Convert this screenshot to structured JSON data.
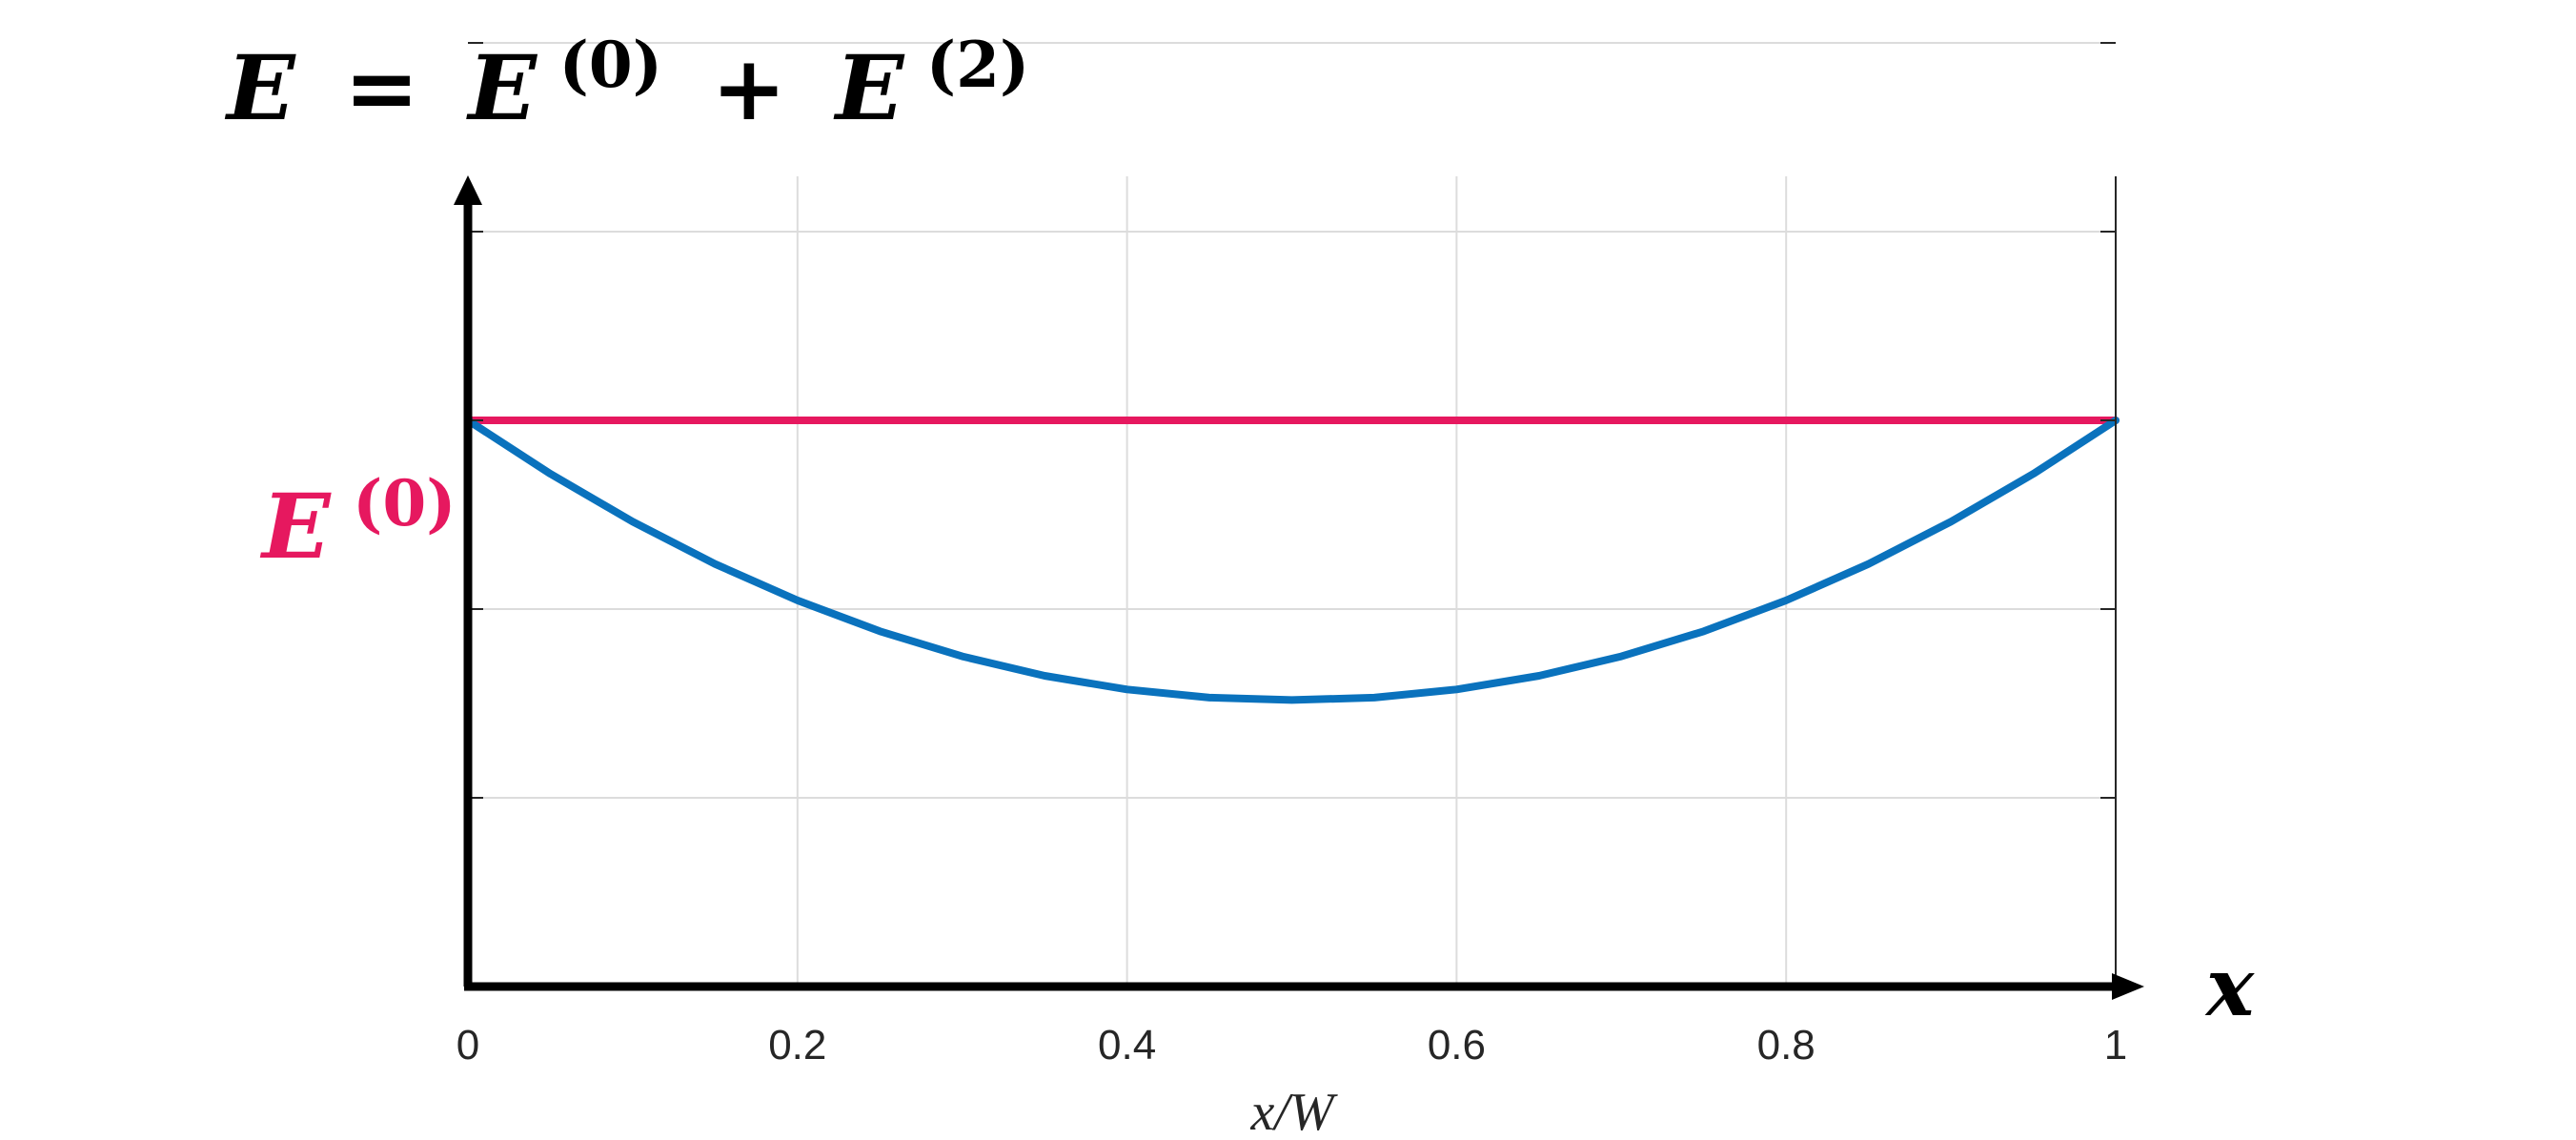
{
  "chart_data": {
    "type": "line",
    "title": {
      "lhs": "E",
      "equals": "=",
      "term1_base": "E",
      "term1_sup": "(0)",
      "plus": "+",
      "term2_base": "E",
      "term2_sup": "(2)"
    },
    "xlabel": "x/W",
    "axis_arrow_label": "x",
    "xlim": [
      0,
      1
    ],
    "ylim": [
      0,
      1
    ],
    "x_ticks": [
      0,
      0.2,
      0.4,
      0.6,
      0.8,
      1
    ],
    "x_tick_labels": [
      "0",
      "0.2",
      "0.4",
      "0.6",
      "0.8",
      "1"
    ],
    "y_ticks": [
      0.2,
      0.4,
      0.6,
      0.8,
      1.0
    ],
    "grid": true,
    "y_level_label": {
      "base": "E",
      "sup": "(0)"
    },
    "series": [
      {
        "x": [
          0,
          0.1,
          0.2,
          0.3,
          0.4,
          0.5,
          0.6,
          0.7,
          0.8,
          0.9,
          1
        ],
        "y": [
          0.6,
          0.6,
          0.6,
          0.6,
          0.6,
          0.6,
          0.6,
          0.6,
          0.6,
          0.6,
          0.6
        ],
        "color": "#e6185f"
      },
      {
        "x": [
          0,
          0.05,
          0.1,
          0.15,
          0.2,
          0.25,
          0.3,
          0.35,
          0.4,
          0.45,
          0.5,
          0.55,
          0.6,
          0.65,
          0.7,
          0.75,
          0.8,
          0.85,
          0.9,
          0.95,
          1
        ],
        "y": [
          0.6,
          0.5433,
          0.4926,
          0.4478,
          0.4092,
          0.3765,
          0.3499,
          0.3293,
          0.3148,
          0.3062,
          0.3036,
          0.3062,
          0.3148,
          0.3293,
          0.3499,
          0.3765,
          0.4092,
          0.4478,
          0.4926,
          0.5433,
          0.6
        ],
        "color": "#0a72bd"
      }
    ]
  }
}
